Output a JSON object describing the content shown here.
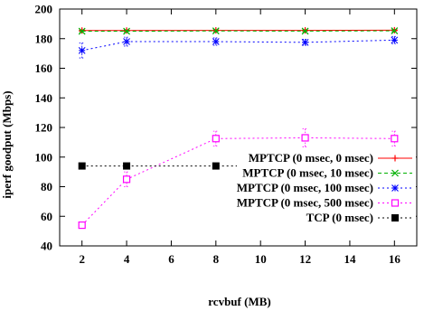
{
  "chart_data": {
    "type": "line",
    "xlabel": "rcvbuf (MB)",
    "ylabel": "iperf goodput (Mbps)",
    "xlim": [
      1,
      17
    ],
    "ylim": [
      40,
      200
    ],
    "x_ticks": [
      2,
      4,
      6,
      8,
      10,
      12,
      14,
      16
    ],
    "y_ticks": [
      40,
      60,
      80,
      100,
      120,
      140,
      160,
      180,
      200
    ],
    "grid": false,
    "legend_position": "bottom-right",
    "x": [
      2,
      4,
      8,
      12,
      16
    ],
    "series": [
      {
        "name": "MPTCP (0 msec, 0 msec)",
        "color": "#ff0000",
        "dash": "solid",
        "marker": "plus",
        "values": [
          185.5,
          185.5,
          185.6,
          185.6,
          185.7
        ],
        "error": [
          0.5,
          0.5,
          0.5,
          0.5,
          0.5
        ]
      },
      {
        "name": "MPTCP (0 msec, 10 msec)",
        "color": "#00b000",
        "dash": "dashed",
        "marker": "x",
        "values": [
          185.0,
          185.0,
          185.2,
          185.1,
          185.3
        ],
        "error": [
          0.7,
          0.7,
          0.7,
          0.7,
          0.7
        ]
      },
      {
        "name": "MPTCP (0 msec, 100 msec)",
        "color": "#0000ff",
        "dash": "dotted",
        "marker": "star",
        "values": [
          172.0,
          178.0,
          178.0,
          177.5,
          179.0
        ],
        "error": [
          5.0,
          3.0,
          2.5,
          2.0,
          2.5
        ]
      },
      {
        "name": "MPTCP (0 msec, 500 msec)",
        "color": "#ff00ff",
        "dash": "dotted",
        "marker": "open-square",
        "values": [
          54.0,
          85.0,
          112.5,
          113.0,
          112.5
        ],
        "error": [
          0.5,
          5.0,
          5.0,
          6.0,
          5.0
        ]
      },
      {
        "name": "TCP (0 msec)",
        "color": "#000000",
        "dash": "dotted",
        "marker": "filled-square",
        "values": [
          94.0,
          94.0,
          94.0,
          94.0,
          94.0
        ],
        "error": [
          0.3,
          0.3,
          0.3,
          0.3,
          0.3
        ]
      }
    ]
  }
}
